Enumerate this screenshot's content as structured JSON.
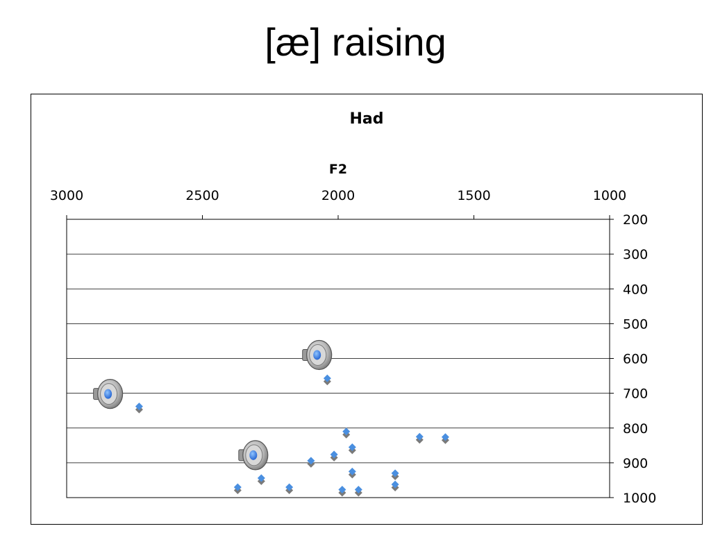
{
  "slide": {
    "title": "[æ] raising"
  },
  "chart_data": {
    "type": "scatter",
    "title": "Had",
    "xlabel": "F2",
    "ylabel": "",
    "xlim": [
      3000,
      1000
    ],
    "ylim": [
      1000,
      200
    ],
    "x_reversed": true,
    "y_reversed": true,
    "x_axis_position": "top",
    "y_axis_position": "right",
    "x_ticks": [
      3000,
      2500,
      2000,
      1500,
      1000
    ],
    "y_ticks": [
      200,
      300,
      400,
      500,
      600,
      700,
      800,
      900,
      1000
    ],
    "grid": "horizontal",
    "legend": "none",
    "marker": "diamond",
    "marker_color": "#4a8fe0",
    "series": [
      {
        "points": [
          [
            2733,
            738
          ],
          [
            2040,
            657
          ],
          [
            1970,
            810
          ],
          [
            1948,
            855
          ],
          [
            2015,
            876
          ],
          [
            2100,
            894
          ],
          [
            1700,
            825
          ],
          [
            1605,
            826
          ],
          [
            1948,
            925
          ],
          [
            1790,
            930
          ],
          [
            1790,
            962
          ],
          [
            2283,
            944
          ],
          [
            2370,
            970
          ],
          [
            2180,
            970
          ],
          [
            1985,
            977
          ],
          [
            1925,
            977
          ]
        ]
      }
    ],
    "audio_icons": [
      {
        "name": "speaker-icon",
        "x": 2075,
        "y": 590
      },
      {
        "name": "speaker-icon",
        "x": 2845,
        "y": 702
      },
      {
        "name": "speaker-icon",
        "x": 2310,
        "y": 878
      }
    ]
  }
}
